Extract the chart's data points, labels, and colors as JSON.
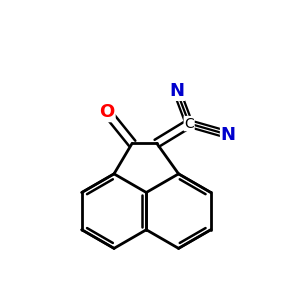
{
  "bg_color": "#ffffff",
  "bond_color": "#000000",
  "N_color": "#0000cd",
  "O_color": "#ff0000",
  "figsize": [
    3.0,
    3.0
  ],
  "dpi": 100,
  "bond_lw": 2.0,
  "inner_lw": 1.8,
  "triple_lw": 1.6,
  "xlim": [
    -2.8,
    3.2
  ],
  "ylim": [
    -3.0,
    3.2
  ]
}
